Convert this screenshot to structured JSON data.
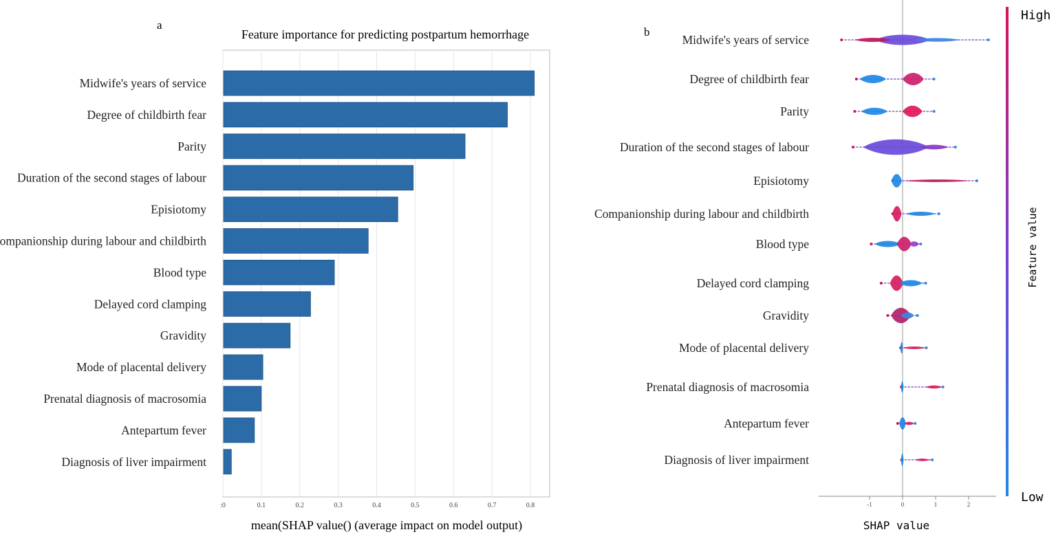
{
  "figure": {
    "panels": [
      "a",
      "b"
    ]
  },
  "chart_data": [
    {
      "panel_label": "a",
      "type": "bar",
      "orientation": "horizontal",
      "title": "Feature importance for predicting postpartum hemorrhage",
      "xlabel": "mean(SHAP value() (average impact on model output)",
      "ylabel": "",
      "xlim": [
        0,
        0.85
      ],
      "xticks": [
        0,
        0.1,
        0.2,
        0.3,
        0.4,
        0.5,
        0.6,
        0.7,
        0.8
      ],
      "xtick_labels": [
        ":0",
        "0.1",
        "0.2",
        "0.3",
        "0.4",
        "0.5",
        "0.6",
        "0.7",
        "0.8"
      ],
      "grid": "vertical",
      "bar_color": "#2b6ca8",
      "categories": [
        "Midwife's years of service",
        "Degree of childbirth fear",
        "Parity",
        "Duration of the second stages of labour",
        "Episiotomy",
        "Companionship during labour and childbirth",
        "Blood type",
        "Delayed cord clamping",
        "Gravidity",
        "Mode of placental delivery",
        "Prenatal diagnosis of macrosomia",
        "Antepartum fever",
        "Diagnosis of liver impairment"
      ],
      "values": [
        0.81,
        0.74,
        0.63,
        0.495,
        0.455,
        0.378,
        0.29,
        0.228,
        0.175,
        0.104,
        0.1,
        0.082,
        0.022
      ]
    },
    {
      "panel_label": "b",
      "type": "scatter",
      "subtype": "beeswarm",
      "xlabel": "SHAP value",
      "ylabel": "",
      "xlim": [
        -2,
        2.8
      ],
      "xticks": [
        -1,
        0,
        1,
        2
      ],
      "xtick_labels": [
        "-1",
        "0",
        "1",
        "2"
      ],
      "colorbar": {
        "label": "Feature value",
        "high_label": "High",
        "low_label": "Low",
        "high_color": "#d4145a",
        "low_color": "#1e88e5"
      },
      "categories": [
        "Midwife's years of service",
        "Degree of childbirth fear",
        "Parity",
        "Duration of the second stages of labour",
        "Episiotomy",
        "Companionship during labour and childbirth",
        "Blood type",
        "Delayed cord clamping",
        "Gravidity",
        "Mode of placental delivery",
        "Prenatal diagnosis of macrosomia",
        "Antepartum fever",
        "Diagnosis of liver impairment"
      ],
      "features": [
        {
          "name": "Midwife's years of service",
          "range": [
            -1.85,
            2.6
          ],
          "blobs": [
            {
              "c": 0.0,
              "w": 0.85,
              "h": 20,
              "color": "#6a4ad9"
            },
            {
              "c": -0.9,
              "w": 0.55,
              "h": 8,
              "color": "#c2185b"
            },
            {
              "c": 1.05,
              "w": 0.7,
              "h": 7,
              "color": "#3d86e0"
            }
          ]
        },
        {
          "name": "Degree of childbirth fear",
          "range": [
            -1.4,
            0.95
          ],
          "blobs": [
            {
              "c": -0.9,
              "w": 0.4,
              "h": 16,
              "color": "#1e88e5"
            },
            {
              "c": 0.32,
              "w": 0.32,
              "h": 24,
              "color": "#cc1f6a"
            }
          ]
        },
        {
          "name": "Parity",
          "range": [
            -1.45,
            0.95
          ],
          "blobs": [
            {
              "c": -0.85,
              "w": 0.4,
              "h": 14,
              "color": "#1e88e5"
            },
            {
              "c": 0.3,
              "w": 0.3,
              "h": 22,
              "color": "#e0185a"
            }
          ]
        },
        {
          "name": "Duration of the second stages of labour",
          "range": [
            -1.5,
            1.6
          ],
          "blobs": [
            {
              "c": -0.2,
              "w": 1.0,
              "h": 30,
              "color": "#6a4ad9"
            },
            {
              "c": 0.95,
              "w": 0.45,
              "h": 9,
              "color": "#8a3bc8"
            }
          ]
        },
        {
          "name": "Episiotomy",
          "range": [
            -0.3,
            2.25
          ],
          "blobs": [
            {
              "c": -0.18,
              "w": 0.16,
              "h": 26,
              "color": "#1e88e5"
            },
            {
              "c": 1.05,
              "w": 1.0,
              "h": 5,
              "color": "#c2185b"
            }
          ]
        },
        {
          "name": "Companionship during labour and childbirth",
          "range": [
            -0.3,
            1.1
          ],
          "blobs": [
            {
              "c": -0.17,
              "w": 0.14,
              "h": 30,
              "color": "#d81b60"
            },
            {
              "c": 0.55,
              "w": 0.45,
              "h": 8,
              "color": "#1e88e5"
            }
          ]
        },
        {
          "name": "Blood type",
          "range": [
            -0.95,
            0.55
          ],
          "blobs": [
            {
              "c": -0.45,
              "w": 0.4,
              "h": 12,
              "color": "#1e88e5"
            },
            {
              "c": 0.05,
              "w": 0.22,
              "h": 28,
              "color": "#cc1f6a"
            },
            {
              "c": 0.35,
              "w": 0.15,
              "h": 10,
              "color": "#9b3fc8"
            }
          ]
        },
        {
          "name": "Delayed cord clamping",
          "range": [
            -0.65,
            0.7
          ],
          "blobs": [
            {
              "c": -0.18,
              "w": 0.2,
              "h": 30,
              "color": "#d81b60"
            },
            {
              "c": 0.25,
              "w": 0.35,
              "h": 12,
              "color": "#1e88e5"
            }
          ]
        },
        {
          "name": "Gravidity",
          "range": [
            -0.45,
            0.45
          ],
          "blobs": [
            {
              "c": -0.05,
              "w": 0.3,
              "h": 30,
              "color": "#b0206a"
            },
            {
              "c": 0.15,
              "w": 0.2,
              "h": 12,
              "color": "#3d86e0"
            }
          ]
        },
        {
          "name": "Mode of placental delivery",
          "range": [
            -0.06,
            0.72
          ],
          "blobs": [
            {
              "c": -0.03,
              "w": 0.04,
              "h": 22,
              "color": "#1e88e5"
            },
            {
              "c": 0.35,
              "w": 0.35,
              "h": 5,
              "color": "#d81b60"
            }
          ]
        },
        {
          "name": "Prenatal diagnosis of macrosomia",
          "range": [
            -0.04,
            1.22
          ],
          "blobs": [
            {
              "c": -0.01,
              "w": 0.03,
              "h": 22,
              "color": "#1e88e5"
            },
            {
              "c": 0.95,
              "w": 0.25,
              "h": 6,
              "color": "#d81b60"
            }
          ]
        },
        {
          "name": "Antepartum fever",
          "range": [
            -0.15,
            0.38
          ],
          "blobs": [
            {
              "c": 0.0,
              "w": 0.1,
              "h": 24,
              "color": "#1e88e5"
            },
            {
              "c": 0.2,
              "w": 0.15,
              "h": 6,
              "color": "#d81b60"
            }
          ]
        },
        {
          "name": "Diagnosis of liver impairment",
          "range": [
            -0.03,
            0.9
          ],
          "blobs": [
            {
              "c": -0.01,
              "w": 0.02,
              "h": 24,
              "color": "#1e88e5"
            },
            {
              "c": 0.6,
              "w": 0.22,
              "h": 5,
              "color": "#d81b60"
            }
          ]
        }
      ]
    }
  ]
}
